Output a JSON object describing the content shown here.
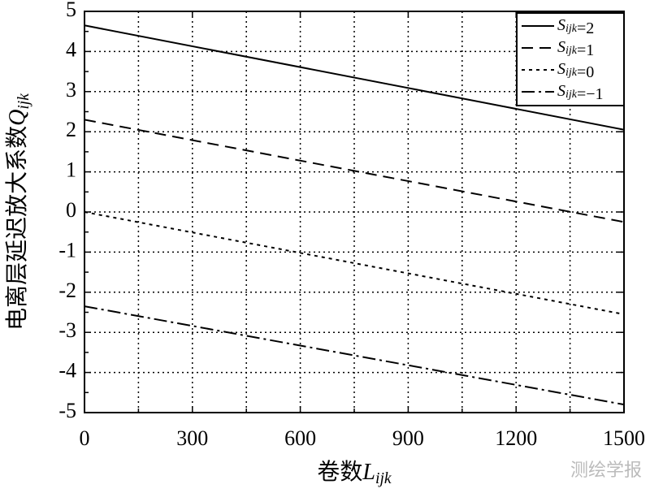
{
  "chart_data": {
    "type": "line",
    "x_label": "卷数Lijk",
    "y_label": "电离层延迟放大系数Qijk",
    "x": [
      0,
      1500
    ],
    "series": [
      {
        "name": "Sijk=2",
        "color": "#000000",
        "style": "solid",
        "values": [
          4.65,
          2.05
        ]
      },
      {
        "name": "Sijk=1",
        "color": "#000000",
        "style": "dashed",
        "values": [
          2.3,
          -0.25
        ]
      },
      {
        "name": "Sijk=0",
        "color": "#000000",
        "style": "dotted",
        "values": [
          0,
          -2.55
        ]
      },
      {
        "name": "Sijk=−1",
        "color": "#000000",
        "style": "dashdot",
        "values": [
          -2.35,
          -4.8
        ]
      }
    ],
    "xlim": [
      0,
      1500
    ],
    "xticks": [
      0,
      300,
      600,
      900,
      1200,
      1500
    ],
    "ylim": [
      -5,
      5
    ],
    "yticks": [
      -5,
      -4,
      -3,
      -2,
      -1,
      0,
      1,
      2,
      3,
      4,
      5
    ],
    "grid": true,
    "legend": "upper right",
    "watermark": "测绘学报"
  }
}
